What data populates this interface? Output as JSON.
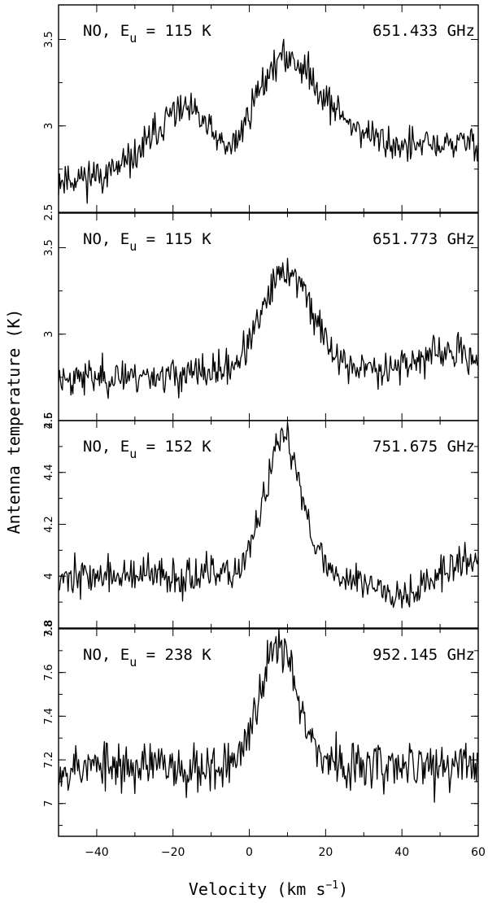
{
  "chart_data": {
    "type": "line",
    "xlabel": "Velocity (km s",
    "xlabel_sup": "−1",
    "xlabel_tail": ")",
    "ylabel": "Antenna temperature (K)",
    "xlim": [
      -50,
      60
    ],
    "xticks": [
      -40,
      -20,
      0,
      20,
      40,
      60
    ],
    "panels": [
      {
        "label_mol": "NO, E",
        "label_sub": "u",
        "label_eq": " = 115 K",
        "freq": "651.433 GHz",
        "ylim": [
          2.5,
          3.7
        ],
        "yticks": [
          {
            "v": 2.5,
            "t": "2.5"
          },
          {
            "v": 3.0,
            "t": "3"
          },
          {
            "v": 3.5,
            "t": "3.5"
          }
        ],
        "baseline": 2.8,
        "noise": 0.05,
        "seed": 11,
        "components": [
          {
            "amp": 0.33,
            "center": -18,
            "width": 7.5
          },
          {
            "amp": 0.56,
            "center": 9,
            "width": 8.0
          },
          {
            "amp": 0.13,
            "center": 24,
            "width": 8.0
          }
        ],
        "dip": {
          "amp": -0.1,
          "center": -5,
          "width": 3.0
        },
        "slope": 0.002
      },
      {
        "label_mol": "NO, E",
        "label_sub": "u",
        "label_eq": " = 115 K",
        "freq": "651.773 GHz",
        "ylim": [
          2.5,
          3.7
        ],
        "yticks": [
          {
            "v": 2.5,
            "t": "2.5"
          },
          {
            "v": 3.0,
            "t": "3"
          },
          {
            "v": 3.5,
            "t": "3.5"
          }
        ],
        "baseline": 2.78,
        "noise": 0.05,
        "seed": 23,
        "components": [
          {
            "amp": 0.58,
            "center": 10,
            "width": 6.5
          },
          {
            "amp": 0.08,
            "center": 52,
            "width": 8.0
          }
        ],
        "slope": 0.0006
      },
      {
        "label_mol": "NO, E",
        "label_sub": "u",
        "label_eq": " = 152 K",
        "freq": "751.675 GHz",
        "ylim": [
          3.8,
          4.6
        ],
        "yticks": [
          {
            "v": 3.8,
            "t": "3.8"
          },
          {
            "v": 4.0,
            "t": "4"
          },
          {
            "v": 4.2,
            "t": "4.2"
          },
          {
            "v": 4.4,
            "t": "4.4"
          },
          {
            "v": 4.6,
            "t": "4.6"
          }
        ],
        "baseline": 4.0,
        "noise": 0.035,
        "seed": 37,
        "components": [
          {
            "amp": 0.52,
            "center": 9,
            "width": 5.0
          },
          {
            "amp": 0.06,
            "center": 58,
            "width": 6.0
          }
        ],
        "dip": {
          "amp": -0.06,
          "center": 40,
          "width": 7.0
        }
      },
      {
        "label_mol": "NO, E",
        "label_sub": "u",
        "label_eq": " = 238 K",
        "freq": "952.145 GHz",
        "ylim": [
          6.85,
          7.8
        ],
        "yticks": [
          {
            "v": 7.0,
            "t": "7"
          },
          {
            "v": 7.2,
            "t": "7.2"
          },
          {
            "v": 7.4,
            "t": "7.4"
          },
          {
            "v": 7.6,
            "t": "7.6"
          },
          {
            "v": 7.8,
            "t": "7.8"
          }
        ],
        "baseline": 7.17,
        "noise": 0.055,
        "seed": 53,
        "components": [
          {
            "amp": 0.55,
            "center": 8,
            "width": 5.0
          }
        ]
      }
    ]
  }
}
